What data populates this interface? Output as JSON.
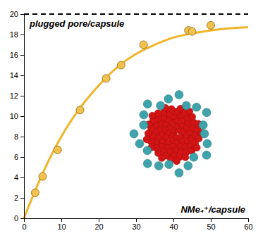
{
  "chart_data": {
    "type": "scatter",
    "x_label": "NMe₄⁺/capsule",
    "y_label": "plugged pore/capsule",
    "series": [
      {
        "type": "scatter",
        "color": "#f2c14e",
        "marker": "circle",
        "x": [
          3,
          5,
          9,
          15,
          22,
          26,
          32,
          44,
          45,
          50
        ],
        "values": [
          2.5,
          4.1,
          6.7,
          10.6,
          13.7,
          15,
          17,
          18.4,
          18.3,
          18.9
        ]
      },
      {
        "type": "line",
        "color": "#f0b429",
        "line_style": "solid",
        "x": [
          0,
          5,
          10,
          15,
          20,
          25,
          30,
          35,
          40,
          45,
          50,
          55,
          60
        ],
        "values": [
          0,
          4.4,
          8,
          10.8,
          13,
          14.8,
          16.1,
          17,
          17.7,
          18.1,
          18.4,
          18.6,
          18.7
        ]
      },
      {
        "type": "line",
        "color": "#000000",
        "line_style": "dashed",
        "x": [
          0,
          60
        ],
        "values": [
          20,
          20
        ]
      }
    ],
    "xlim": [
      0,
      60
    ],
    "ylim": [
      0,
      20
    ],
    "xticks": [
      0,
      10,
      20,
      30,
      40,
      50,
      60
    ],
    "yticks": [
      0,
      2,
      4,
      6,
      8,
      10,
      12,
      14,
      16,
      18,
      20
    ],
    "grid": false
  }
}
